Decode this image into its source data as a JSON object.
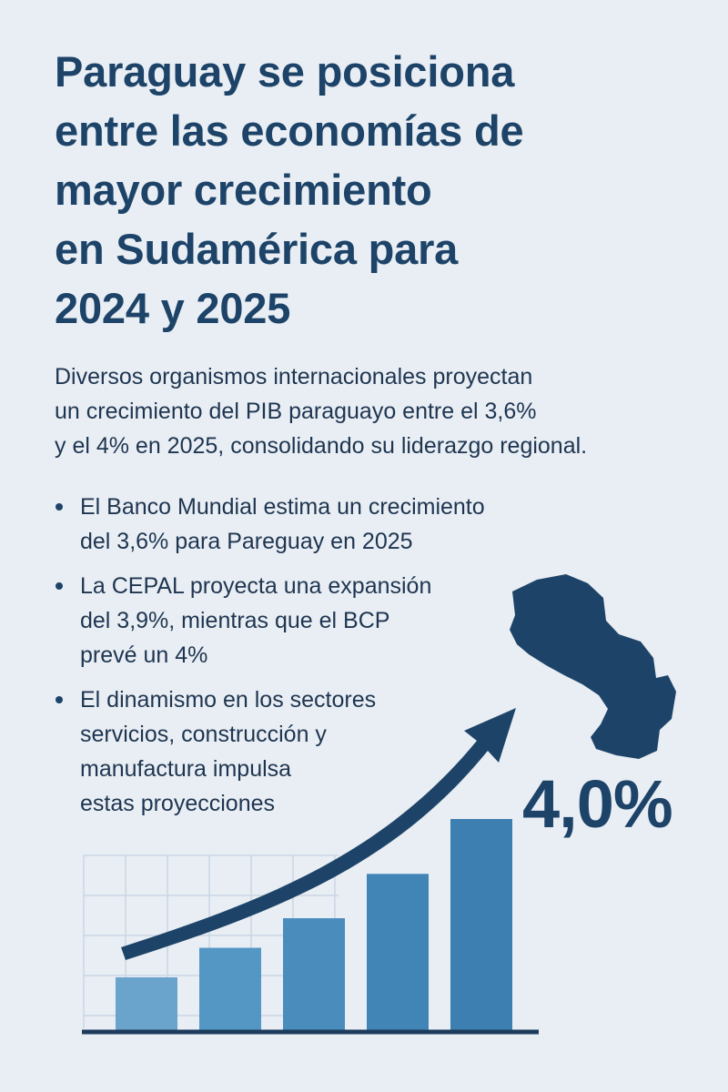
{
  "title_lines": [
    "Paraguay se posiciona",
    "entre las economías de",
    "mayor crecimiento",
    "en Sudamérica para",
    "2024 y 2025"
  ],
  "intro_lines": [
    "Diversos organismos internacionales proyectan",
    "un crecimiento del PIB paraguayo entre el 3,6%",
    "y el 4% en 2025, consolidando su liderazgo regional."
  ],
  "bullets": [
    {
      "lines": [
        "El Banco Mundial estima un crecimiento",
        "del 3,6% para Pareguay en 2025"
      ]
    },
    {
      "lines": [
        "La CEPAL proyecta una expansión",
        "del 3,9%, mientras que el BCP",
        "prevé un 4%"
      ]
    },
    {
      "lines": [
        "El dinamismo en los sectores",
        "servicios, construcción y",
        "manufactura impulsa",
        "estas proyecciones"
      ]
    }
  ],
  "highlight_value": "4,0%",
  "graphic": {
    "bar_levels": [
      0.25,
      0.39,
      0.53,
      0.74,
      1.0
    ],
    "bar_colors": [
      "#6aa3cc",
      "#5597c4",
      "#4a8cbc",
      "#4185b6",
      "#3d7fb0"
    ],
    "arrow_color": "#1d4468",
    "map_color": "#1d4468",
    "grid_color": "#c9d6e4",
    "baseline_color": "#1d3c5c",
    "icons": [
      "growth-arrow-icon",
      "paraguay-map-icon"
    ]
  }
}
